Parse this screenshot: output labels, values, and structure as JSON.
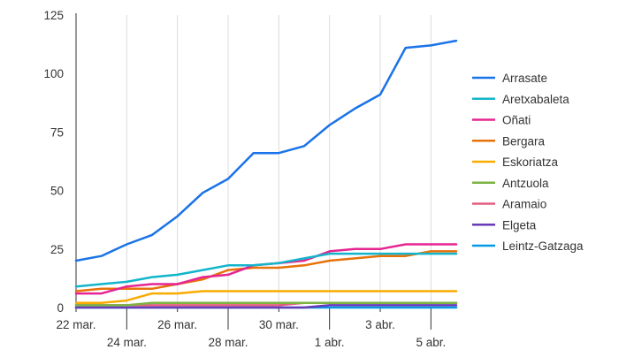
{
  "chart_data": {
    "type": "line",
    "title": "",
    "xlabel": "",
    "ylabel": "",
    "ylim": [
      0,
      125
    ],
    "yticks": [
      0,
      25,
      50,
      75,
      100,
      125
    ],
    "grid": "vertical",
    "legend_position": "right",
    "x": [
      "22 mar.",
      "23 mar.",
      "24 mar.",
      "25 mar.",
      "26 mar.",
      "27 mar.",
      "28 mar.",
      "29 mar.",
      "30 mar.",
      "31 mar.",
      "1 abr.",
      "2 abr.",
      "3 abr.",
      "4 abr.",
      "5 abr.",
      "6 abr."
    ],
    "xtick_labels": [
      {
        "index": 0,
        "label": "22 mar.",
        "row": 1
      },
      {
        "index": 2,
        "label": "24 mar.",
        "row": 2
      },
      {
        "index": 4,
        "label": "26 mar.",
        "row": 1
      },
      {
        "index": 6,
        "label": "28 mar.",
        "row": 2
      },
      {
        "index": 8,
        "label": "30 mar.",
        "row": 1
      },
      {
        "index": 10,
        "label": "1 abr.",
        "row": 2
      },
      {
        "index": 12,
        "label": "3 abr.",
        "row": 1
      },
      {
        "index": 14,
        "label": "5 abr.",
        "row": 2
      }
    ],
    "series": [
      {
        "name": "Arrasate",
        "color": "#1a73e8",
        "values": [
          20,
          22,
          27,
          31,
          39,
          49,
          55,
          66,
          66,
          69,
          78,
          85,
          91,
          111,
          112,
          114
        ]
      },
      {
        "name": "Aretxabaleta",
        "color": "#12b5cb",
        "values": [
          9,
          10,
          11,
          13,
          14,
          16,
          18,
          18,
          19,
          21,
          23,
          23,
          23,
          23,
          23,
          23
        ]
      },
      {
        "name": "Oñati",
        "color": "#e52592",
        "values": [
          6,
          6,
          9,
          10,
          10,
          13,
          14,
          18,
          19,
          20,
          24,
          25,
          25,
          27,
          27,
          27
        ]
      },
      {
        "name": "Bergara",
        "color": "#e8710a",
        "values": [
          7,
          8,
          8,
          8,
          10,
          12,
          16,
          17,
          17,
          18,
          20,
          21,
          22,
          22,
          24,
          24
        ]
      },
      {
        "name": "Eskoriatza",
        "color": "#f9ab00",
        "values": [
          2,
          2,
          3,
          6,
          6,
          7,
          7,
          7,
          7,
          7,
          7,
          7,
          7,
          7,
          7,
          7
        ]
      },
      {
        "name": "Antzuola",
        "color": "#7cb342",
        "values": [
          1,
          1,
          1,
          2,
          2,
          2,
          2,
          2,
          2,
          2,
          2,
          2,
          2,
          2,
          2,
          2
        ]
      },
      {
        "name": "Aramaio",
        "color": "#e35d7e",
        "values": [
          1,
          1,
          1,
          1,
          1,
          1,
          1,
          1,
          1,
          2,
          2,
          2,
          2,
          2,
          2,
          2
        ]
      },
      {
        "name": "Elgeta",
        "color": "#673ab7",
        "values": [
          0,
          0,
          0,
          0,
          0,
          0,
          0,
          0,
          0,
          0,
          1,
          1,
          1,
          1,
          1,
          1
        ]
      },
      {
        "name": "Leintz-Gatzaga",
        "color": "#039be5",
        "values": [
          0,
          0,
          0,
          0,
          0,
          0,
          0,
          0,
          0,
          0,
          0,
          0,
          0,
          0,
          0,
          0
        ]
      }
    ]
  }
}
